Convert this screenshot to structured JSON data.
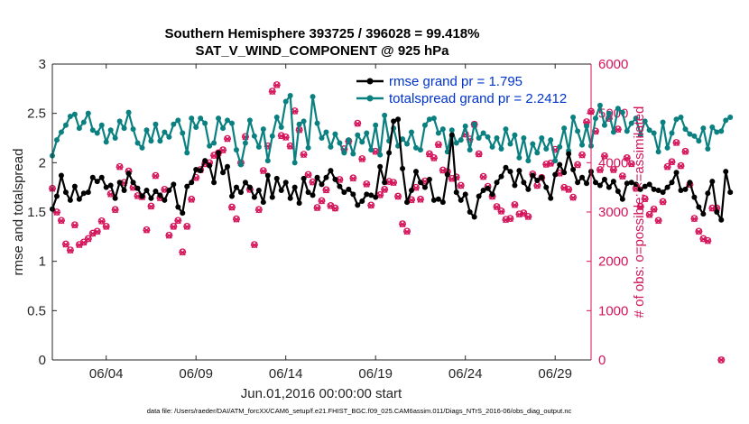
{
  "chart_data": {
    "type": "line",
    "title": "Southern Hemisphere 393725 / 396028 = 99.418%",
    "subtitle": "SAT_V_WIND_COMPONENT @ 925 hPa",
    "xlabel": "Jun.01,2016 00:00:00 start",
    "ylabel_left": "rmse and totalspread",
    "ylabel_right": "# of obs: o=possible; ×=assimilated",
    "x_tick_labels": [
      "06/04",
      "06/09",
      "06/14",
      "06/19",
      "06/24",
      "06/29"
    ],
    "x_tick_days": [
      4,
      9,
      14,
      19,
      24,
      29
    ],
    "xlim_days": [
      1,
      31
    ],
    "ylim_left": [
      0,
      3
    ],
    "ylim_right": [
      0,
      6000
    ],
    "y_ticks_left": [
      "0",
      "0.5",
      "1",
      "1.5",
      "2",
      "2.5",
      "3"
    ],
    "y_ticks_right": [
      "0",
      "1000",
      "2000",
      "3000",
      "4000",
      "5000",
      "6000"
    ],
    "x_step_days": 0.25,
    "series": [
      {
        "name": "rmse grand pr = 1.795",
        "color": "#000000",
        "axis": "left",
        "values": [
          1.53,
          1.66,
          1.87,
          1.7,
          1.62,
          1.76,
          1.63,
          1.69,
          1.7,
          1.85,
          1.81,
          1.85,
          1.75,
          1.77,
          1.64,
          1.8,
          1.72,
          1.89,
          1.8,
          1.74,
          1.66,
          1.72,
          1.64,
          1.71,
          1.67,
          1.62,
          1.72,
          1.78,
          1.55,
          1.49,
          1.76,
          1.8,
          1.93,
          1.92,
          2.02,
          1.97,
          1.8,
          2.1,
          1.9,
          1.96,
          1.66,
          1.75,
          1.7,
          1.8,
          1.75,
          1.65,
          1.72,
          1.6,
          1.87,
          1.65,
          1.84,
          1.72,
          1.8,
          1.64,
          1.75,
          1.59,
          1.84,
          1.7,
          1.67,
          1.85,
          1.78,
          1.85,
          1.92,
          1.83,
          1.76,
          1.7,
          1.73,
          1.68,
          1.57,
          1.61,
          1.68,
          1.67,
          1.65,
          1.96,
          1.8,
          2.1,
          2.42,
          2.44,
          1.94,
          1.6,
          1.72,
          1.91,
          1.8,
          1.75,
          1.83,
          1.62,
          1.63,
          1.6,
          1.88,
          2.28,
          1.7,
          1.62,
          1.68,
          1.5,
          1.45,
          1.66,
          1.72,
          1.74,
          1.68,
          1.8,
          1.86,
          1.95,
          1.91,
          1.77,
          1.92,
          1.8,
          1.73,
          1.87,
          1.82,
          1.85,
          1.75,
          1.64,
          1.88,
          1.98,
          1.9,
          2.09,
          1.93,
          1.8,
          1.85,
          1.79,
          1.91,
          1.8,
          1.77,
          1.83,
          1.75,
          1.81,
          1.71,
          1.63,
          1.79,
          1.8,
          1.78,
          1.73,
          1.76,
          1.78,
          1.73,
          1.72,
          1.7,
          1.75,
          1.8,
          1.9,
          1.72,
          1.73,
          1.8,
          1.65,
          1.55,
          1.48,
          1.69,
          1.81,
          1.5,
          1.42,
          1.91,
          1.7
        ]
      },
      {
        "name": "totalspread grand pr = 2.2412",
        "color": "#0b8080",
        "axis": "left",
        "values": [
          2.07,
          2.23,
          2.31,
          2.38,
          2.47,
          2.49,
          2.35,
          2.41,
          2.5,
          2.33,
          2.3,
          2.38,
          2.21,
          2.33,
          2.25,
          2.42,
          2.35,
          2.51,
          2.34,
          2.2,
          2.15,
          2.33,
          2.22,
          2.39,
          2.22,
          2.31,
          2.26,
          2.39,
          2.43,
          2.3,
          2.1,
          2.45,
          2.36,
          2.45,
          2.4,
          2.17,
          2.2,
          2.45,
          2.35,
          2.43,
          2.4,
          2.13,
          1.98,
          2.2,
          2.43,
          2.27,
          2.16,
          2.34,
          2.02,
          2.27,
          2.46,
          2.36,
          2.62,
          2.68,
          2.0,
          2.39,
          2.42,
          2.15,
          2.67,
          2.4,
          2.25,
          2.31,
          2.16,
          2.29,
          2.2,
          2.1,
          2.23,
          2.09,
          2.28,
          2.21,
          2.3,
          2.13,
          2.38,
          2.08,
          2.48,
          2.22,
          2.35,
          2.17,
          2.24,
          2.19,
          2.31,
          2.15,
          2.13,
          2.38,
          2.44,
          2.45,
          2.3,
          2.34,
          2.11,
          2.33,
          2.2,
          2.23,
          2.37,
          2.13,
          2.39,
          2.25,
          2.3,
          2.26,
          2.16,
          2.25,
          2.14,
          2.34,
          2.19,
          2.28,
          2.05,
          2.25,
          2.02,
          2.19,
          2.1,
          2.25,
          2.14,
          2.23,
          2.02,
          2.16,
          2.35,
          2.12,
          2.46,
          2.32,
          2.18,
          2.37,
          2.17,
          2.45,
          2.58,
          2.38,
          2.5,
          2.31,
          2.55,
          2.51,
          2.32,
          2.4,
          2.45,
          2.28,
          2.42,
          2.33,
          2.3,
          2.11,
          2.41,
          2.15,
          2.3,
          2.44,
          2.46,
          2.34,
          2.29,
          2.27,
          2.22,
          2.35,
          2.14,
          2.36,
          2.31,
          2.32,
          2.43,
          2.46
        ]
      },
      {
        "name": "possible",
        "color": "#d4145a",
        "axis": "right",
        "marker": "o",
        "values": [
          3480,
          3000,
          2830,
          2350,
          2230,
          2740,
          2340,
          2390,
          2460,
          2570,
          2610,
          2820,
          2710,
          3370,
          3050,
          3920,
          3600,
          3830,
          3500,
          3330,
          3310,
          2640,
          3120,
          3740,
          3290,
          3460,
          2530,
          2710,
          2830,
          2190,
          2710,
          3260,
          3700,
          3860,
          3980,
          4000,
          4150,
          4200,
          4260,
          4490,
          3100,
          2860,
          4000,
          4530,
          3460,
          2340,
          3050,
          3840,
          4340,
          5450,
          5580,
          4550,
          4520,
          4340,
          5050,
          4670,
          4170,
          3760,
          3610,
          3090,
          3230,
          3450,
          3130,
          3080,
          3660,
          4280,
          4440,
          3690,
          4800,
          4080,
          3570,
          3140,
          4230,
          3350,
          3460,
          3620,
          3600,
          3320,
          2760,
          2610,
          3250,
          3500,
          3260,
          3630,
          4180,
          4100,
          4370,
          3850,
          3820,
          3680,
          3710,
          3540,
          4580,
          4480,
          4780,
          4180,
          3720,
          3520,
          3320,
          3110,
          3020,
          2850,
          2870,
          3150,
          2960,
          2980,
          2910,
          3770,
          3540,
          3700,
          3970,
          3990,
          4270,
          3790,
          3500,
          3460,
          3300,
          3960,
          4160,
          4830,
          5040,
          4640,
          3860,
          4140,
          4900,
          3860,
          4680,
          3730,
          4100,
          3980,
          3480,
          3110,
          3270,
          2950,
          3060,
          2830,
          3210,
          3920,
          4020,
          4410,
          3940,
          4230,
          3560,
          2870,
          2610,
          2460,
          2420,
          3080,
          3080,
          0
        ]
      },
      {
        "name": "assimilated",
        "color": "#d4145a",
        "axis": "right",
        "marker": "x",
        "values": [
          3470,
          2990,
          2820,
          2340,
          2220,
          2730,
          2330,
          2380,
          2450,
          2560,
          2600,
          2810,
          2700,
          3360,
          3040,
          3910,
          3590,
          3820,
          3490,
          3320,
          3300,
          2630,
          3110,
          3730,
          3280,
          3450,
          2520,
          2700,
          2820,
          2180,
          2700,
          3250,
          3690,
          3850,
          3970,
          3990,
          4140,
          4190,
          4250,
          4480,
          3090,
          2850,
          3990,
          4520,
          3450,
          2330,
          3040,
          3830,
          4330,
          5440,
          5570,
          4540,
          4510,
          4330,
          5040,
          4660,
          4160,
          3750,
          3600,
          3080,
          3220,
          3440,
          3120,
          3070,
          3650,
          4270,
          4430,
          3680,
          4790,
          4070,
          3560,
          3130,
          4220,
          3340,
          3450,
          3610,
          3590,
          3310,
          2750,
          2600,
          3240,
          3490,
          3250,
          3620,
          4170,
          4090,
          4360,
          3840,
          3810,
          3670,
          3700,
          3530,
          4570,
          4470,
          4770,
          4170,
          3710,
          3510,
          3310,
          3100,
          3010,
          2840,
          2860,
          3140,
          2950,
          2970,
          2900,
          3760,
          3530,
          3690,
          3960,
          3980,
          4260,
          3780,
          3490,
          3450,
          3290,
          3950,
          4150,
          4820,
          5030,
          4630,
          3850,
          4130,
          4890,
          3850,
          4670,
          3720,
          4090,
          3970,
          3470,
          3100,
          3260,
          2940,
          3050,
          2820,
          3200,
          3910,
          4010,
          4400,
          3930,
          4220,
          3550,
          2860,
          2600,
          2450,
          2410,
          3070,
          3070,
          0
        ]
      }
    ],
    "legend_position": "top-right",
    "footnote": "data file: /Users/raeder/DAI/ATM_forcXX/CAM6_setup/f.e21.FHIST_BGC.f09_025.CAM6assim.011/Diags_NTrS_2016-06/obs_diag_output.nc"
  }
}
